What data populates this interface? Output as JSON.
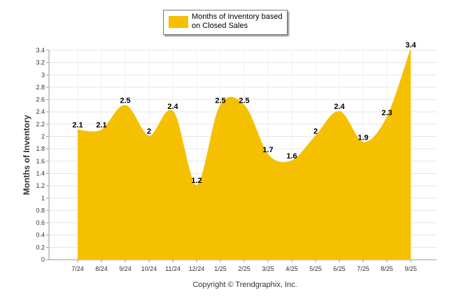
{
  "chart_data": {
    "type": "area",
    "categories": [
      "7/24",
      "8/24",
      "9/24",
      "10/24",
      "11/24",
      "12/24",
      "1/25",
      "2/25",
      "3/25",
      "4/25",
      "5/25",
      "6/25",
      "7/25",
      "8/25",
      "9/25"
    ],
    "series": [
      {
        "name": "Months of Inventory based on Closed Sales",
        "values": [
          2.1,
          2.1,
          2.5,
          2,
          2.4,
          1.2,
          2.5,
          2.5,
          1.7,
          1.6,
          2,
          2.4,
          1.9,
          2.3,
          3.4
        ],
        "data_labels": [
          "2.1",
          "2.1",
          "2.5",
          "2",
          "2.4",
          "1.2",
          "2.5",
          "2.5",
          "1.7",
          "1.6",
          "2",
          "2.4",
          "1.9",
          "2.3",
          "3.4"
        ],
        "color": "#f5c000"
      }
    ],
    "title": "",
    "xlabel": "",
    "ylabel": "Months of Inventory",
    "ylim": [
      0,
      3.4
    ],
    "yticks": [
      "0",
      "0.2",
      "0.4",
      "0.6",
      "0.8",
      "1",
      "1.2",
      "1.4",
      "1.6",
      "1.8",
      "2",
      "2.2",
      "2.4",
      "2.6",
      "2.8",
      "3",
      "3.2",
      "3.4"
    ],
    "grid": true,
    "legend_position": "top-center"
  },
  "legend": {
    "label": "Months of Inventory based on Closed Sales"
  },
  "footer": {
    "copyright": "Copyright © Trendgraphix, Inc."
  },
  "colors": {
    "series": "#f5c000",
    "grid": "#e6e6e6",
    "axis": "#9a9a9a"
  }
}
